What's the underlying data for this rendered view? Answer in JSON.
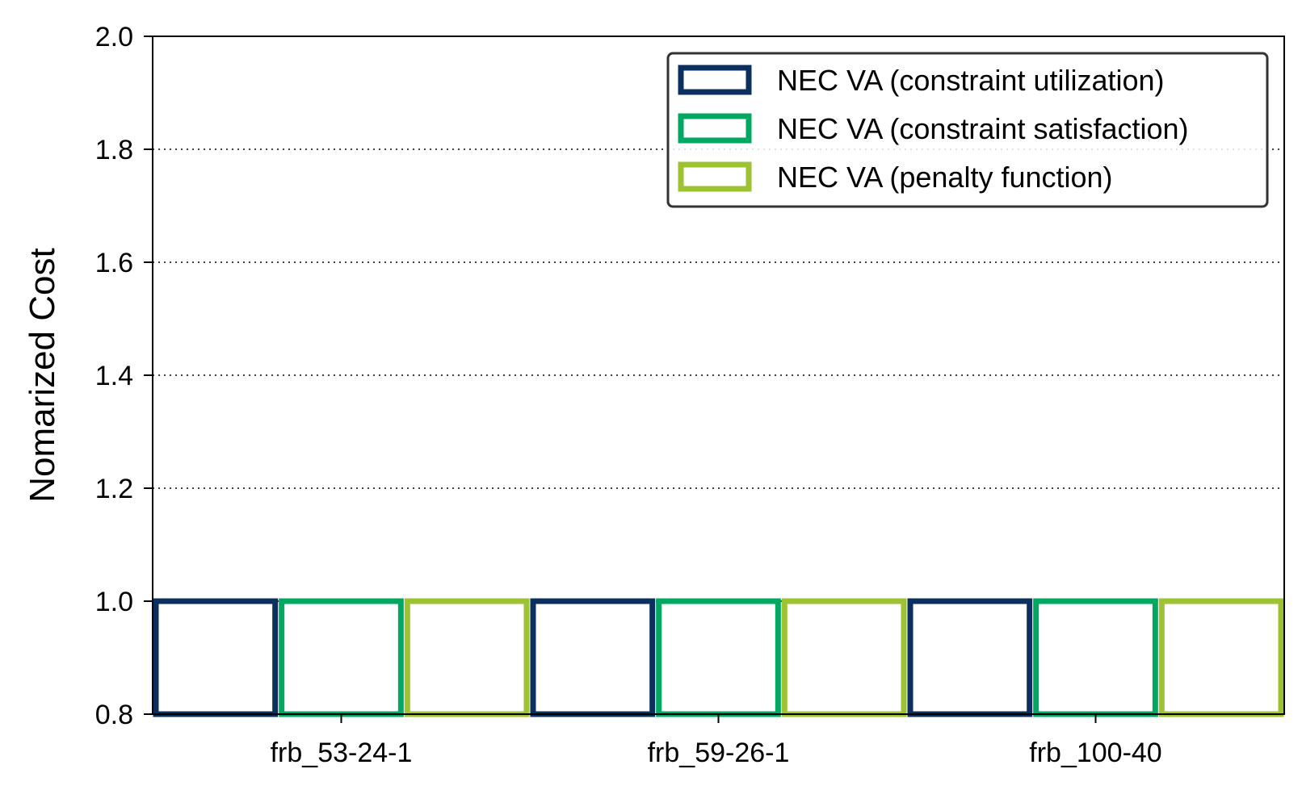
{
  "chart_data": {
    "type": "bar",
    "categories": [
      "frb_53-24-1",
      "frb_59-26-1",
      "frb_100-40"
    ],
    "series": [
      {
        "name": "NEC VA (constraint utilization)",
        "values": [
          1.0,
          1.0,
          1.0
        ],
        "color": "#0b3060"
      },
      {
        "name": "NEC VA (constraint satisfaction)",
        "values": [
          1.0,
          1.0,
          1.0
        ],
        "color": "#00a862"
      },
      {
        "name": "NEC VA (penalty function)",
        "values": [
          1.0,
          1.0,
          1.0
        ],
        "color": "#9dc232"
      }
    ],
    "title": "",
    "xlabel": "",
    "ylabel": "Nomarized Cost",
    "ylim": [
      0.8,
      2.0
    ],
    "yticks": [
      "0.8",
      "1.0",
      "1.2",
      "1.4",
      "1.6",
      "1.8",
      "2.0"
    ],
    "ytick_values": [
      0.8,
      1.0,
      1.2,
      1.4,
      1.6,
      1.8,
      2.0
    ],
    "grid": "horizontal dotted",
    "legend": "top-right",
    "bar_style": "outline"
  }
}
